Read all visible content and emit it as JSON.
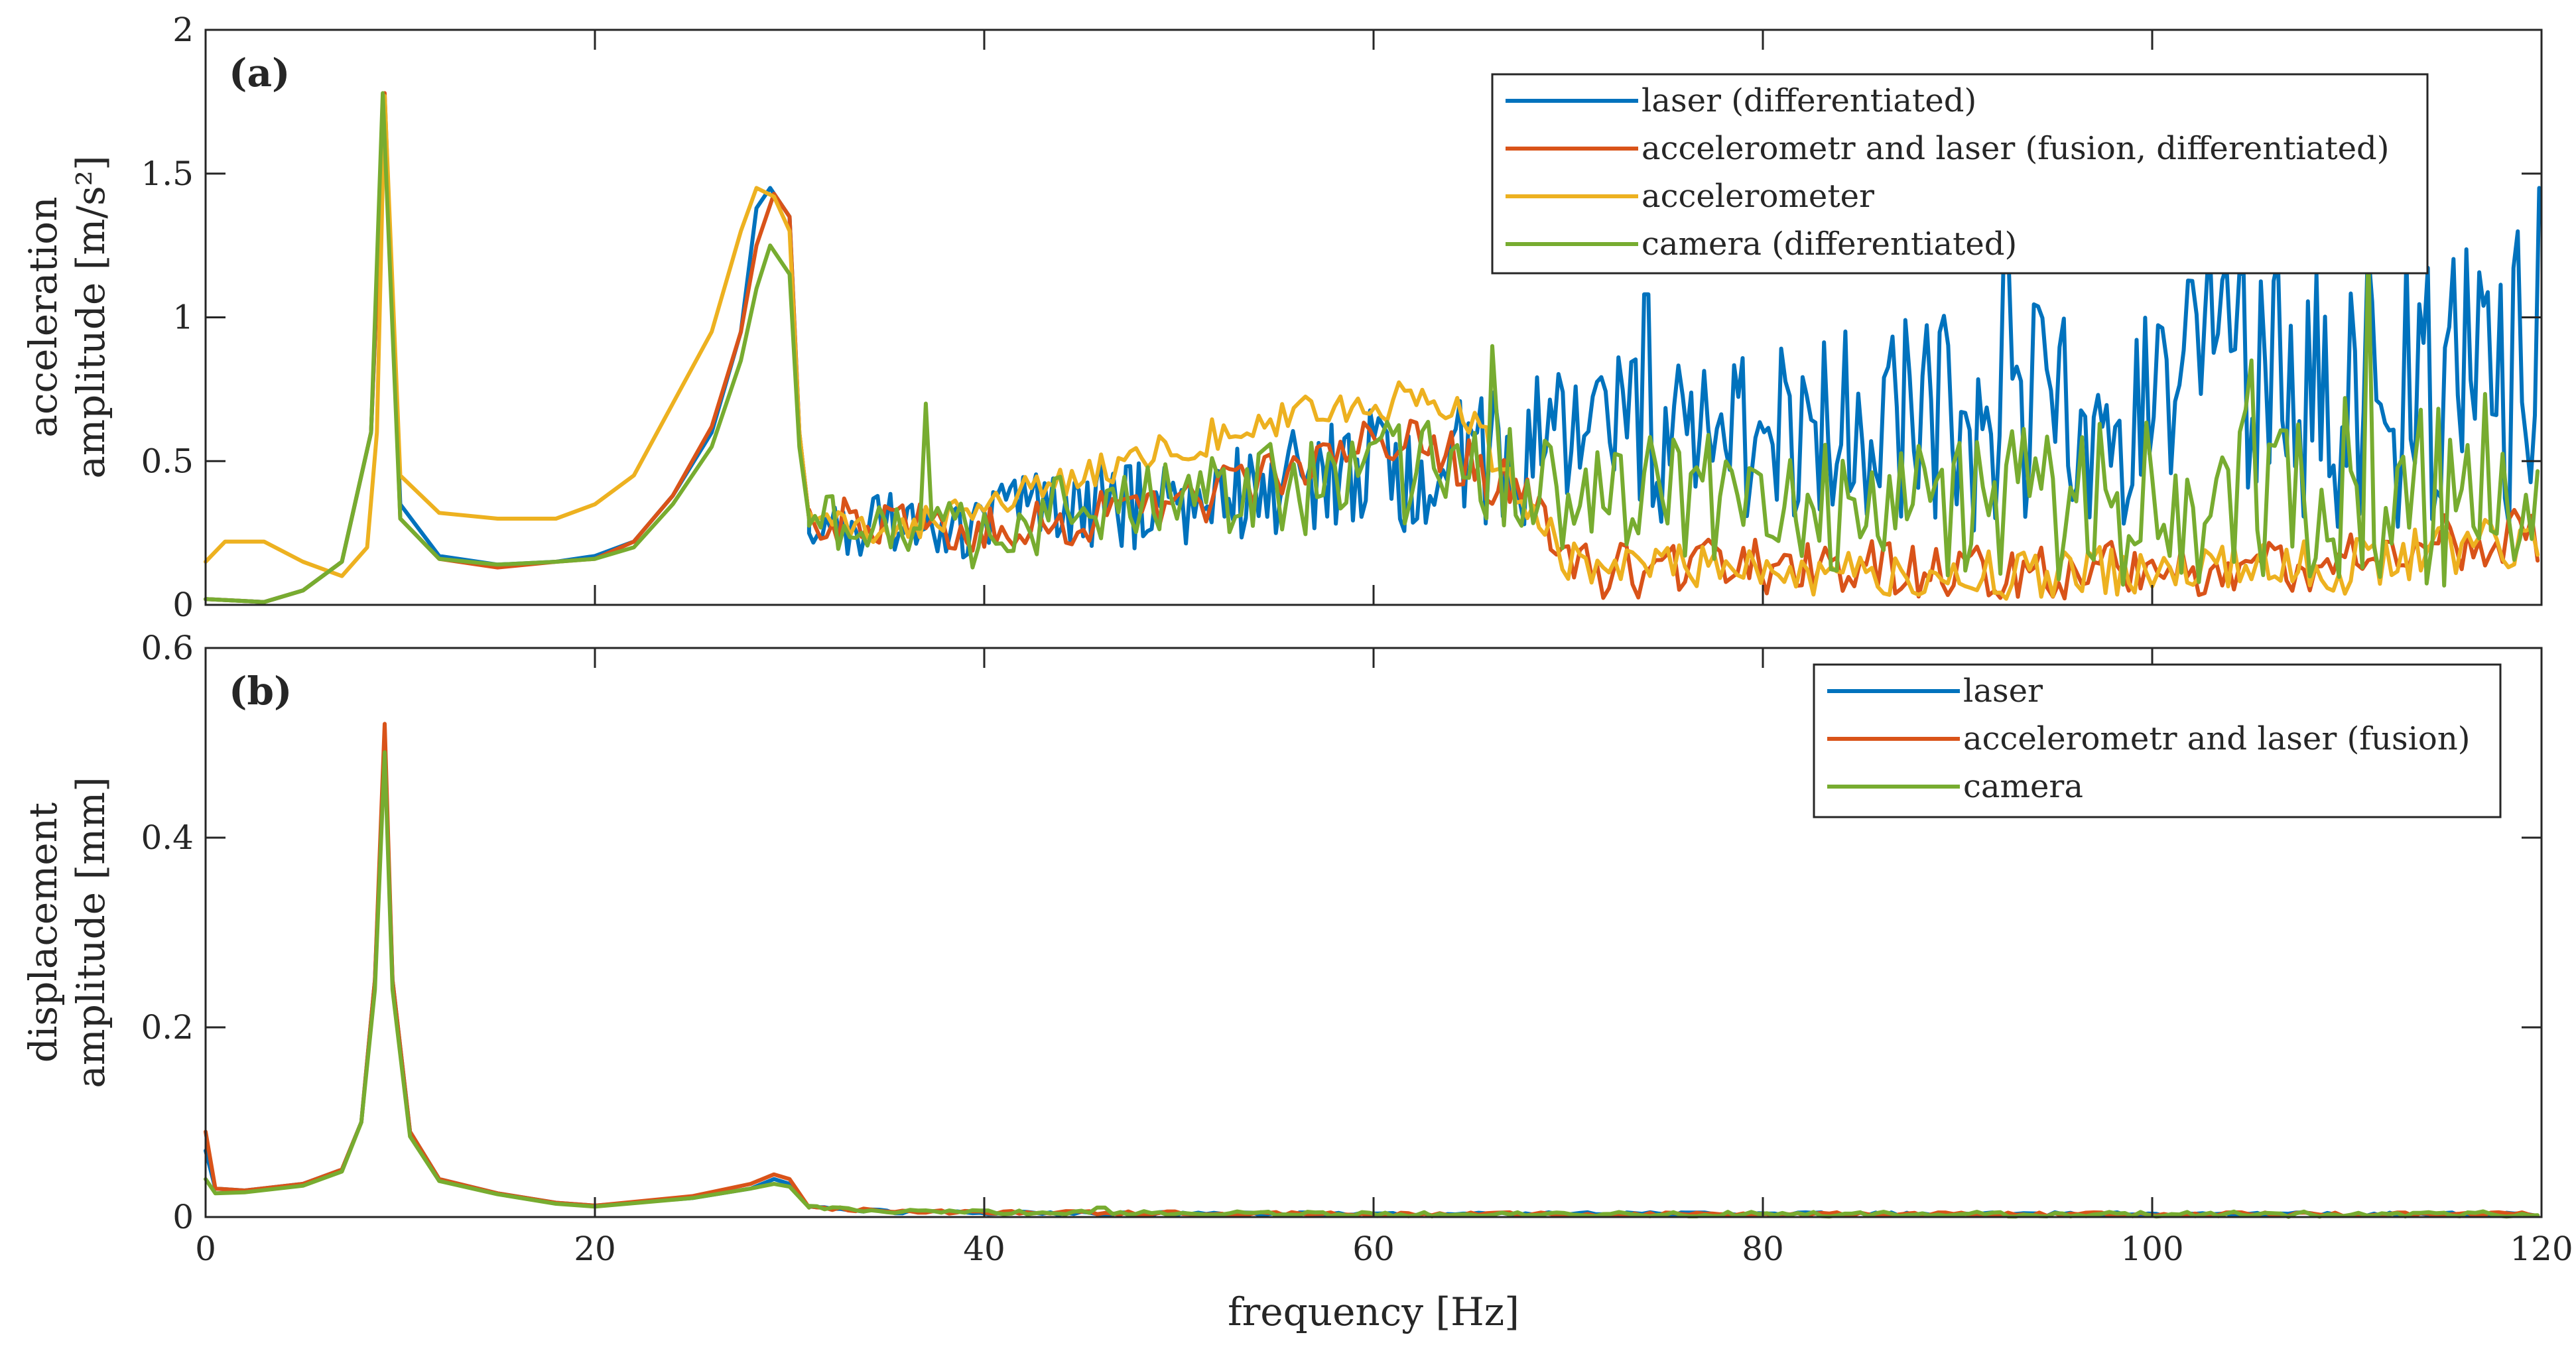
{
  "chart_data": [
    {
      "panel_label": "(a)",
      "type": "line",
      "xlabel": "",
      "ylabel_lines": [
        "acceleration",
        "amplitude [m/s²]"
      ],
      "xlim": [
        0,
        120
      ],
      "ylim": [
        0,
        2
      ],
      "x_ticks": [
        0,
        20,
        40,
        60,
        80,
        100,
        120
      ],
      "y_ticks": [
        0,
        0.5,
        1,
        1.5,
        2
      ],
      "y_tick_labels": [
        "0",
        "0.5",
        "1",
        "1.5",
        "2"
      ],
      "x_tick_labels_shown": false,
      "legend_position": "top-right",
      "series": [
        {
          "name": "laser (differentiated)",
          "color": "#0072BD",
          "model": "accel",
          "points": [
            [
              0,
              0.02
            ],
            [
              3,
              0.01
            ],
            [
              5,
              0.05
            ],
            [
              7,
              0.15
            ],
            [
              8.5,
              0.6
            ],
            [
              9.2,
              1.75
            ],
            [
              10,
              0.35
            ],
            [
              12,
              0.17
            ],
            [
              15,
              0.14
            ],
            [
              18,
              0.15
            ],
            [
              20,
              0.17
            ],
            [
              22,
              0.22
            ],
            [
              24,
              0.38
            ],
            [
              26,
              0.6
            ],
            [
              27.5,
              0.95
            ],
            [
              28.3,
              1.38
            ],
            [
              29,
              1.45
            ],
            [
              30,
              1.35
            ],
            [
              30.5,
              0.6
            ],
            [
              31,
              0.3
            ],
            [
              33,
              0.25
            ],
            [
              35,
              0.3
            ],
            [
              38,
              0.25
            ],
            [
              40,
              0.3
            ],
            [
              45,
              0.35
            ],
            [
              50,
              0.35
            ],
            [
              55,
              0.4
            ],
            [
              60,
              0.45
            ],
            [
              65,
              0.5
            ],
            [
              70,
              0.55
            ],
            [
              80,
              0.6
            ],
            [
              90,
              0.65
            ],
            [
              100,
              0.7
            ],
            [
              110,
              0.75
            ],
            [
              120,
              0.8
            ]
          ],
          "noise": {
            "start": 31,
            "step": 0.22,
            "amplitude": [
              0.08,
              0.55
            ],
            "peaks": [
              [
                74,
                1.08
              ],
              [
                92.5,
                1.25
              ],
              [
                103,
                1.28
              ],
              [
                111,
                1.25
              ],
              [
                119.8,
                1.45
              ]
            ]
          }
        },
        {
          "name": "accelerometr and laser (fusion, differentiated)",
          "color": "#D95319",
          "model": "accel",
          "points": [
            [
              0,
              0.02
            ],
            [
              3,
              0.01
            ],
            [
              5,
              0.05
            ],
            [
              7,
              0.15
            ],
            [
              8.5,
              0.6
            ],
            [
              9.2,
              1.78
            ],
            [
              10,
              0.3
            ],
            [
              12,
              0.16
            ],
            [
              15,
              0.13
            ],
            [
              18,
              0.15
            ],
            [
              20,
              0.16
            ],
            [
              22,
              0.22
            ],
            [
              24,
              0.38
            ],
            [
              26,
              0.62
            ],
            [
              27.5,
              0.95
            ],
            [
              28.3,
              1.25
            ],
            [
              29.2,
              1.43
            ],
            [
              30,
              1.35
            ],
            [
              30.5,
              0.6
            ],
            [
              31,
              0.3
            ],
            [
              35,
              0.28
            ],
            [
              40,
              0.25
            ],
            [
              45,
              0.3
            ],
            [
              50,
              0.35
            ],
            [
              55,
              0.45
            ],
            [
              60,
              0.6
            ],
            [
              63,
              0.55
            ],
            [
              67,
              0.4
            ],
            [
              69,
              0.28
            ],
            [
              70,
              0.12
            ],
            [
              80,
              0.13
            ],
            [
              90,
              0.12
            ],
            [
              100,
              0.13
            ],
            [
              110,
              0.15
            ],
            [
              120,
              0.25
            ]
          ],
          "noise": {
            "start": 31,
            "step": 0.3,
            "amplitude": [
              0.08,
              0.12
            ],
            "peaks": []
          }
        },
        {
          "name": "accelerometer",
          "color": "#EDB120",
          "model": "accel",
          "points": [
            [
              0,
              0.15
            ],
            [
              1,
              0.22
            ],
            [
              3,
              0.22
            ],
            [
              5,
              0.15
            ],
            [
              7,
              0.1
            ],
            [
              8.3,
              0.2
            ],
            [
              8.8,
              0.6
            ],
            [
              9.2,
              1.77
            ],
            [
              10,
              0.45
            ],
            [
              12,
              0.32
            ],
            [
              15,
              0.3
            ],
            [
              18,
              0.3
            ],
            [
              20,
              0.35
            ],
            [
              22,
              0.45
            ],
            [
              24,
              0.7
            ],
            [
              26,
              0.95
            ],
            [
              27.5,
              1.3
            ],
            [
              28.3,
              1.45
            ],
            [
              29.2,
              1.42
            ],
            [
              30,
              1.3
            ],
            [
              30.5,
              0.6
            ],
            [
              31,
              0.3
            ],
            [
              35,
              0.25
            ],
            [
              40,
              0.35
            ],
            [
              45,
              0.45
            ],
            [
              50,
              0.55
            ],
            [
              55,
              0.65
            ],
            [
              60,
              0.7
            ],
            [
              63,
              0.72
            ],
            [
              65,
              0.62
            ],
            [
              67,
              0.45
            ],
            [
              70,
              0.15
            ],
            [
              80,
              0.12
            ],
            [
              90,
              0.1
            ],
            [
              100,
              0.12
            ],
            [
              110,
              0.13
            ],
            [
              120,
              0.25
            ]
          ],
          "noise": {
            "start": 31,
            "step": 0.3,
            "amplitude": [
              0.05,
              0.1
            ],
            "peaks": []
          }
        },
        {
          "name": "camera (differentiated)",
          "color": "#77AC30",
          "model": "accel",
          "points": [
            [
              0,
              0.02
            ],
            [
              3,
              0.01
            ],
            [
              5,
              0.05
            ],
            [
              7,
              0.15
            ],
            [
              8.5,
              0.6
            ],
            [
              9.1,
              1.78
            ],
            [
              10,
              0.3
            ],
            [
              12,
              0.16
            ],
            [
              15,
              0.14
            ],
            [
              18,
              0.15
            ],
            [
              20,
              0.16
            ],
            [
              22,
              0.2
            ],
            [
              24,
              0.35
            ],
            [
              26,
              0.55
            ],
            [
              27.5,
              0.85
            ],
            [
              28.3,
              1.1
            ],
            [
              29,
              1.25
            ],
            [
              30,
              1.15
            ],
            [
              30.5,
              0.55
            ],
            [
              31,
              0.3
            ],
            [
              35,
              0.25
            ],
            [
              40,
              0.25
            ],
            [
              45,
              0.35
            ],
            [
              50,
              0.35
            ],
            [
              55,
              0.4
            ],
            [
              60,
              0.45
            ],
            [
              65,
              0.5
            ],
            [
              70,
              0.4
            ],
            [
              80,
              0.35
            ],
            [
              90,
              0.35
            ],
            [
              100,
              0.35
            ],
            [
              110,
              0.4
            ],
            [
              120,
              0.4
            ]
          ],
          "noise": {
            "start": 31,
            "step": 0.3,
            "amplitude": [
              0.1,
              0.35
            ],
            "peaks": [
              [
                37,
                0.7
              ],
              [
                66,
                0.9
              ],
              [
                105,
                0.85
              ],
              [
                111,
                1.25
              ]
            ]
          }
        }
      ]
    },
    {
      "panel_label": "(b)",
      "type": "line",
      "xlabel": "frequency [Hz]",
      "ylabel_lines": [
        "displacement",
        "amplitude [mm]"
      ],
      "xlim": [
        0,
        120
      ],
      "ylim": [
        0,
        0.6
      ],
      "x_ticks": [
        0,
        20,
        40,
        60,
        80,
        100,
        120
      ],
      "x_tick_labels": [
        "0",
        "20",
        "40",
        "60",
        "80",
        "100",
        "120"
      ],
      "y_ticks": [
        0,
        0.2,
        0.4,
        0.6
      ],
      "y_tick_labels": [
        "0",
        "0.2",
        "0.4",
        "0.6"
      ],
      "x_tick_labels_shown": true,
      "legend_position": "top-right",
      "series": [
        {
          "name": "laser",
          "color": "#0072BD",
          "model": "disp",
          "points": [
            [
              0,
              0.07
            ],
            [
              0.5,
              0.03
            ],
            [
              2,
              0.028
            ],
            [
              5,
              0.035
            ],
            [
              7,
              0.05
            ],
            [
              8,
              0.1
            ],
            [
              8.7,
              0.25
            ],
            [
              9.2,
              0.5
            ],
            [
              9.6,
              0.25
            ],
            [
              10.5,
              0.09
            ],
            [
              12,
              0.04
            ],
            [
              15,
              0.025
            ],
            [
              18,
              0.015
            ],
            [
              20,
              0.012
            ],
            [
              25,
              0.02
            ],
            [
              28,
              0.03
            ],
            [
              29.2,
              0.04
            ],
            [
              30,
              0.035
            ],
            [
              31,
              0.01
            ],
            [
              35,
              0.006
            ],
            [
              40,
              0.004
            ],
            [
              60,
              0.003
            ],
            [
              80,
              0.003
            ],
            [
              100,
              0.003
            ],
            [
              120,
              0.003
            ]
          ],
          "noise": {
            "start": 31,
            "step": 0.4,
            "amplitude": [
              0.002,
              0.002
            ],
            "peaks": []
          }
        },
        {
          "name": "accelerometr and laser (fusion)",
          "color": "#D95319",
          "model": "disp",
          "points": [
            [
              0,
              0.09
            ],
            [
              0.5,
              0.03
            ],
            [
              2,
              0.028
            ],
            [
              5,
              0.035
            ],
            [
              7,
              0.05
            ],
            [
              8,
              0.1
            ],
            [
              8.7,
              0.25
            ],
            [
              9.2,
              0.52
            ],
            [
              9.6,
              0.25
            ],
            [
              10.5,
              0.09
            ],
            [
              12,
              0.04
            ],
            [
              15,
              0.025
            ],
            [
              18,
              0.015
            ],
            [
              20,
              0.012
            ],
            [
              25,
              0.022
            ],
            [
              28,
              0.035
            ],
            [
              29.2,
              0.045
            ],
            [
              30,
              0.04
            ],
            [
              31,
              0.01
            ],
            [
              35,
              0.006
            ],
            [
              40,
              0.005
            ],
            [
              60,
              0.003
            ],
            [
              80,
              0.003
            ],
            [
              100,
              0.003
            ],
            [
              120,
              0.003
            ]
          ],
          "noise": {
            "start": 31,
            "step": 0.4,
            "amplitude": [
              0.002,
              0.002
            ],
            "peaks": []
          }
        },
        {
          "name": "camera",
          "color": "#77AC30",
          "model": "disp",
          "points": [
            [
              0,
              0.04
            ],
            [
              0.5,
              0.025
            ],
            [
              2,
              0.026
            ],
            [
              5,
              0.033
            ],
            [
              7,
              0.048
            ],
            [
              8,
              0.1
            ],
            [
              8.7,
              0.24
            ],
            [
              9.2,
              0.49
            ],
            [
              9.6,
              0.24
            ],
            [
              10.5,
              0.085
            ],
            [
              12,
              0.038
            ],
            [
              15,
              0.024
            ],
            [
              18,
              0.014
            ],
            [
              20,
              0.011
            ],
            [
              25,
              0.02
            ],
            [
              28,
              0.03
            ],
            [
              29.2,
              0.035
            ],
            [
              30,
              0.032
            ],
            [
              31,
              0.01
            ],
            [
              35,
              0.006
            ],
            [
              40,
              0.005
            ],
            [
              60,
              0.003
            ],
            [
              80,
              0.003
            ],
            [
              100,
              0.003
            ],
            [
              120,
              0.003
            ]
          ],
          "noise": {
            "start": 31,
            "step": 0.4,
            "amplitude": [
              0.002,
              0.003
            ],
            "peaks": [
              [
                46,
                0.01
              ]
            ]
          }
        }
      ]
    }
  ]
}
